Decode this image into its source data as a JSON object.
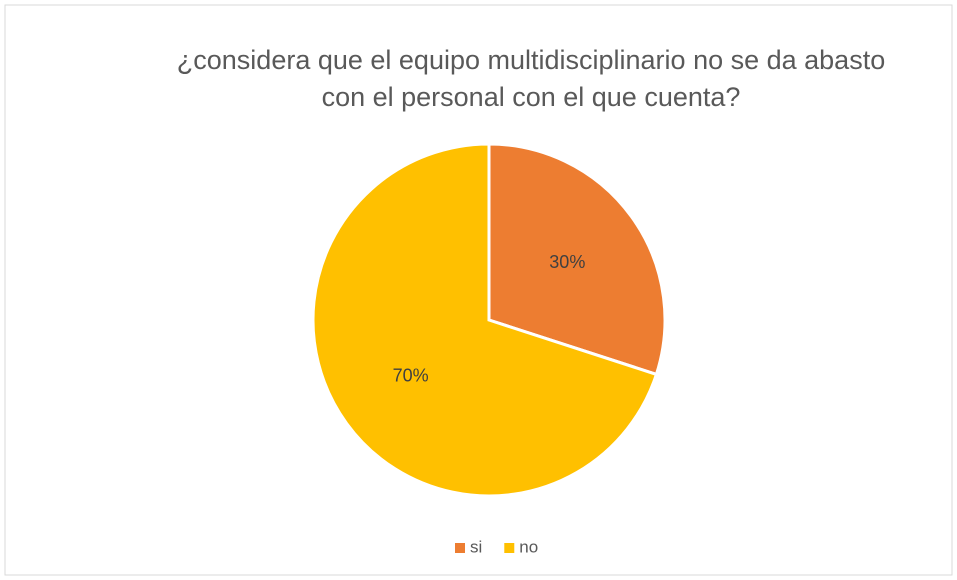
{
  "chart_data": {
    "type": "pie",
    "title": "¿considera que el equipo multidisciplinario no se da abasto con el personal con el que cuenta?",
    "categories": [
      "si",
      "no"
    ],
    "values": [
      30,
      70
    ],
    "value_labels": [
      "30%",
      "70%"
    ],
    "colors": [
      "#ED7D31",
      "#FFC000"
    ],
    "legend": "bottom"
  }
}
